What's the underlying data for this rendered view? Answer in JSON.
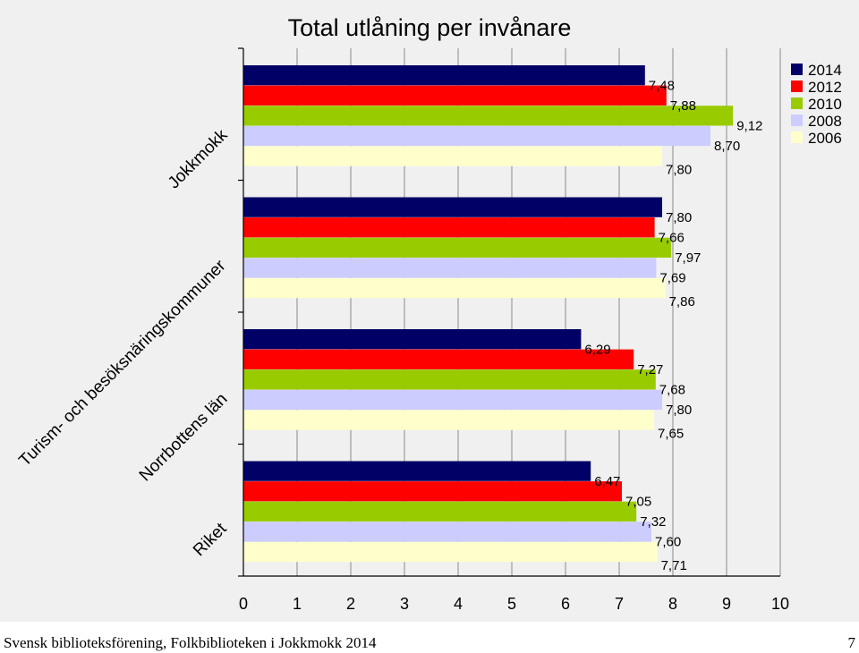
{
  "chart_data": {
    "type": "bar",
    "orientation": "horizontal",
    "title": "Total utlåning per invånare",
    "categories": [
      "Jokkmokk",
      "Turism- och besöksnäringskommuner",
      "Norrbottens län",
      "Riket"
    ],
    "series": [
      {
        "name": "2014",
        "color": "#000066",
        "values": [
          7.48,
          7.8,
          6.29,
          6.47
        ],
        "labels": [
          "7,48",
          "7,80",
          "6,29",
          "6,47"
        ]
      },
      {
        "name": "2012",
        "color": "#ff0000",
        "values": [
          7.88,
          7.66,
          7.27,
          7.05
        ],
        "labels": [
          "7,88",
          "7,66",
          "7,27",
          "7,05"
        ]
      },
      {
        "name": "2010",
        "color": "#99cc00",
        "values": [
          9.12,
          7.97,
          7.68,
          7.32
        ],
        "labels": [
          "9,12",
          "7,97",
          "7,68",
          "7,32"
        ]
      },
      {
        "name": "2008",
        "color": "#ccccff",
        "values": [
          8.7,
          7.69,
          7.8,
          7.6
        ],
        "labels": [
          "8,70",
          "7,69",
          "7,80",
          "7,60"
        ]
      },
      {
        "name": "2006",
        "color": "#ffffcc",
        "values": [
          7.8,
          7.86,
          7.65,
          7.71
        ],
        "labels": [
          "7,80",
          "7,86",
          "7,65",
          "7,71"
        ]
      }
    ],
    "xlim": [
      0,
      10
    ],
    "xticks": [
      "0",
      "1",
      "2",
      "3",
      "4",
      "5",
      "6",
      "7",
      "8",
      "9",
      "10"
    ],
    "grid": "vertical",
    "legend": "top-right"
  },
  "footer": {
    "left": "Svensk biblioteksförening, Folkbiblioteken i Jokkmokk 2014",
    "page": "7"
  }
}
